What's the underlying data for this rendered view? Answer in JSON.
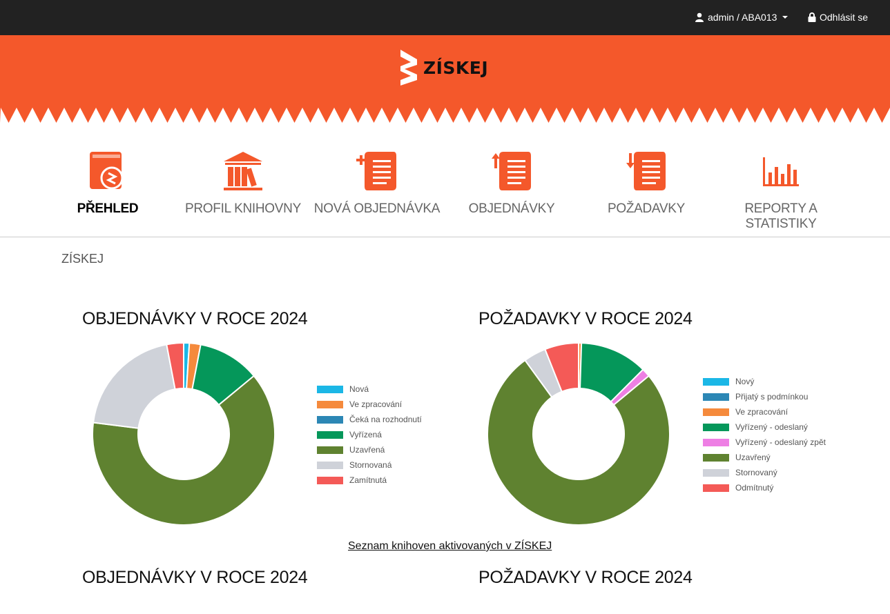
{
  "topbar": {
    "user_label": "admin / ABA013",
    "logout_label": "Odhlásit se"
  },
  "logo": {
    "text": "ZÍSKEJ"
  },
  "nav": {
    "items": [
      {
        "label": "PŘEHLED",
        "icon": "book-icon",
        "active": true
      },
      {
        "label": "PROFIL KNIHOVNY",
        "icon": "library-icon"
      },
      {
        "label": "NOVÁ OBJEDNÁVKA",
        "icon": "new-order-icon"
      },
      {
        "label": "OBJEDNÁVKY",
        "icon": "orders-icon"
      },
      {
        "label": "POŽADAVKY",
        "icon": "requests-icon"
      },
      {
        "label": "REPORTY A STATISTIKY",
        "icon": "bar-chart-icon"
      }
    ]
  },
  "breadcrumb": "ZÍSKEJ",
  "colors": {
    "brand": "#f4582b",
    "topbar": "#222222"
  },
  "chart_data": [
    {
      "type": "pie",
      "title": "OBJEDNÁVKY V ROCE 2024",
      "categories": [
        "Nová",
        "Ve zpracování",
        "Čeká na rozhodnutí",
        "Vyřízená",
        "Uzavřená",
        "Stornovaná",
        "Zamítnutá"
      ],
      "values": [
        1,
        2,
        0,
        11,
        63,
        20,
        3
      ],
      "colors": [
        "#1bb7e6",
        "#f58a3c",
        "#2c87b5",
        "#05975a",
        "#5f8230",
        "#cfd2d9",
        "#f45a57"
      ],
      "legend": "right"
    },
    {
      "type": "pie",
      "title": "POŽADAVKY V ROCE 2024",
      "categories": [
        "Nový",
        "Přijatý s podmínkou",
        "Ve zpracování",
        "Vyřízený - odeslaný",
        "Vyřízený - odeslaný zpět",
        "Uzavřený",
        "Stornovaný",
        "Odmítnutý"
      ],
      "values": [
        0,
        0,
        0.5,
        12,
        1.5,
        76,
        4,
        6
      ],
      "colors": [
        "#1bb7e6",
        "#2c87b5",
        "#f58a3c",
        "#05975a",
        "#ee7fe4",
        "#5f8230",
        "#cfd2d9",
        "#f45a57"
      ],
      "legend": "right"
    }
  ],
  "link_label": "Seznam knihoven aktivovaných v ZÍSKEJ",
  "bottom_titles": [
    "OBJEDNÁVKY V ROCE 2024",
    "POŽADAVKY V ROCE 2024"
  ]
}
